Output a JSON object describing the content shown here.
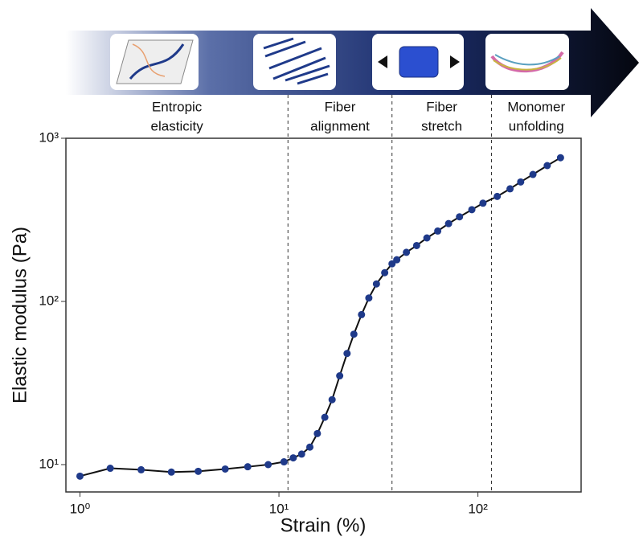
{
  "chart_data": {
    "type": "line",
    "x_label": "Strain (%)",
    "y_label": "Elastic modulus (Pa)",
    "x": [
      1.0,
      1.42,
      2.03,
      2.88,
      3.93,
      5.37,
      6.97,
      8.83,
      10.6,
      11.8,
      13.0,
      14.3,
      15.6,
      17.0,
      18.5,
      20.2,
      22.0,
      23.8,
      26.0,
      28.3,
      30.9,
      34.0,
      37.0,
      39.1,
      43.7,
      49.2,
      55.4,
      62.8,
      71.2,
      80.8,
      93.2,
      106,
      125,
      145,
      164,
      189,
      223,
      260
    ],
    "values": [
      8.5,
      9.5,
      9.3,
      9.0,
      9.1,
      9.4,
      9.7,
      10.0,
      10.4,
      11.0,
      11.6,
      12.8,
      15.5,
      19.5,
      25,
      35,
      48,
      63,
      83,
      105,
      128,
      150,
      170,
      180,
      200,
      220,
      245,
      270,
      300,
      330,
      365,
      400,
      440,
      490,
      540,
      600,
      680,
      760
    ],
    "marker_color": "#1f3a8a",
    "line_color": "#111111",
    "x_log": true,
    "y_log": true,
    "xlim": [
      0.85,
      330
    ],
    "ylim": [
      6.8,
      1000
    ],
    "xticks": [
      {
        "value": 1,
        "label": "10⁰"
      },
      {
        "value": 10,
        "label": "10¹"
      },
      {
        "value": 100,
        "label": "10²"
      }
    ],
    "yticks": [
      {
        "value": 10,
        "label": "10¹"
      },
      {
        "value": 100,
        "label": "10²"
      },
      {
        "value": 1000,
        "label": "10³"
      }
    ],
    "boundaries": [
      11.1,
      37.0,
      117
    ],
    "regions": [
      {
        "label": [
          "Entropic",
          "elasticity"
        ]
      },
      {
        "label": [
          "Fiber",
          "alignment"
        ]
      },
      {
        "label": [
          "Fiber",
          "stretch"
        ]
      },
      {
        "label": [
          "Monomer",
          "unfolding"
        ]
      }
    ]
  }
}
